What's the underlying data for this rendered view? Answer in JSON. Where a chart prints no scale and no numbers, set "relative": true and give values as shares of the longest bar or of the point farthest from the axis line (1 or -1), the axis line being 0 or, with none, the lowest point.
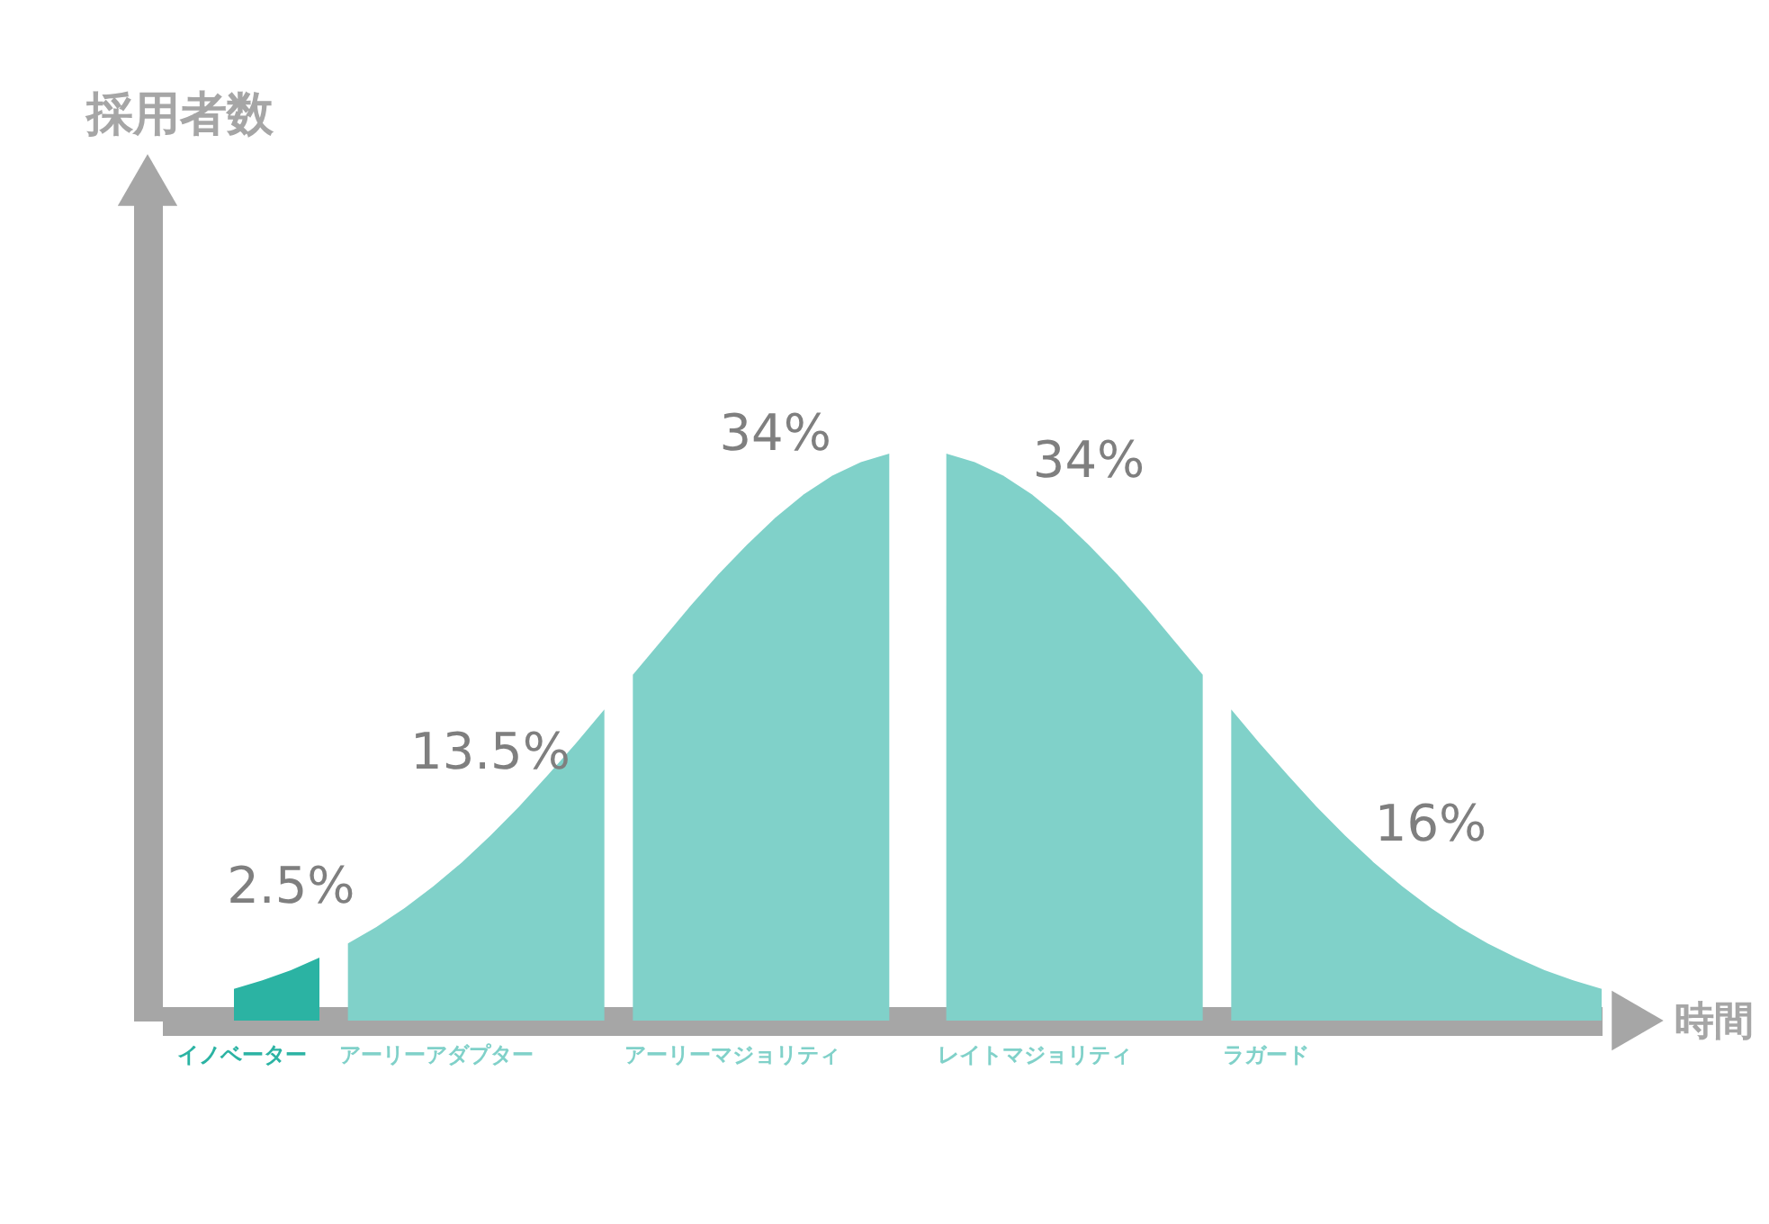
{
  "chart_data": {
    "type": "area",
    "relative": true,
    "xlabel": "時間",
    "categories": [
      null,
      null,
      null,
      null,
      null,
      null,
      null,
      null,
      null,
      null,
      null,
      null,
      null,
      null,
      null,
      null,
      null,
      null,
      null,
      null,
      null,
      null,
      null,
      null,
      null,
      null,
      null,
      null,
      null,
      null,
      null,
      null,
      null,
      null,
      null,
      null,
      null,
      null,
      null,
      null,
      null,
      null,
      null,
      null,
      null,
      null,
      null,
      null,
      null
    ],
    "series": [
      {
        "name": "イノベーター",
        "color": "#2bb3a3",
        "values": [
          0.056,
          0.071,
          0.089,
          0.111,
          null,
          null,
          null,
          null,
          null,
          null,
          null,
          null,
          null,
          null,
          null,
          null,
          null,
          null,
          null,
          null,
          null,
          null,
          null,
          null,
          null,
          null,
          null,
          null,
          null,
          null,
          null,
          null,
          null,
          null,
          null,
          null,
          null,
          null,
          null,
          null,
          null,
          null,
          null,
          null,
          null,
          null,
          null,
          null,
          null
        ]
      },
      {
        "name": "アーリーアダプター",
        "color": "#80d1c9",
        "values": [
          null,
          null,
          null,
          null,
          0.136,
          0.165,
          0.199,
          0.237,
          0.279,
          0.326,
          0.377,
          0.432,
          0.489,
          0.549,
          null,
          null,
          null,
          null,
          null,
          null,
          null,
          null,
          null,
          null,
          null,
          null,
          null,
          null,
          null,
          null,
          null,
          null,
          null,
          null,
          null,
          null,
          null,
          null,
          null,
          null,
          null,
          null,
          null,
          null,
          null,
          null,
          null,
          null,
          null
        ]
      },
      {
        "name": "アーリーマジョリティ",
        "color": "#80d1c9",
        "values": [
          null,
          null,
          null,
          null,
          null,
          null,
          null,
          null,
          null,
          null,
          null,
          null,
          null,
          null,
          0.61,
          0.67,
          0.73,
          0.787,
          0.839,
          0.887,
          0.928,
          0.961,
          0.985,
          1.0,
          null,
          null,
          null,
          null,
          null,
          null,
          null,
          null,
          null,
          null,
          null,
          null,
          null,
          null,
          null,
          null,
          null,
          null,
          null,
          null,
          null,
          null,
          null,
          null,
          null
        ]
      },
      {
        "name": "レイトマジョリティ",
        "color": "#80d1c9",
        "values": [
          null,
          null,
          null,
          null,
          null,
          null,
          null,
          null,
          null,
          null,
          null,
          null,
          null,
          null,
          null,
          null,
          null,
          null,
          null,
          null,
          null,
          null,
          null,
          null,
          null,
          1.0,
          0.985,
          0.961,
          0.928,
          0.887,
          0.839,
          0.787,
          0.73,
          0.67,
          0.61,
          null,
          null,
          null,
          null,
          null,
          null,
          null,
          null,
          null,
          null,
          null,
          null,
          null,
          null
        ]
      },
      {
        "name": "ラガード",
        "color": "#80d1c9",
        "values": [
          null,
          null,
          null,
          null,
          null,
          null,
          null,
          null,
          null,
          null,
          null,
          null,
          null,
          null,
          null,
          null,
          null,
          null,
          null,
          null,
          null,
          null,
          null,
          null,
          null,
          null,
          null,
          null,
          null,
          null,
          null,
          null,
          null,
          null,
          null,
          0.549,
          0.489,
          0.432,
          0.377,
          0.326,
          0.279,
          0.237,
          0.199,
          0.165,
          0.136,
          0.111,
          0.089,
          0.071,
          0.056
        ]
      }
    ],
    "annotations": [
      "2.5%",
      "13.5%",
      "34%",
      "34%",
      "16%",
      "採用者数"
    ]
  }
}
